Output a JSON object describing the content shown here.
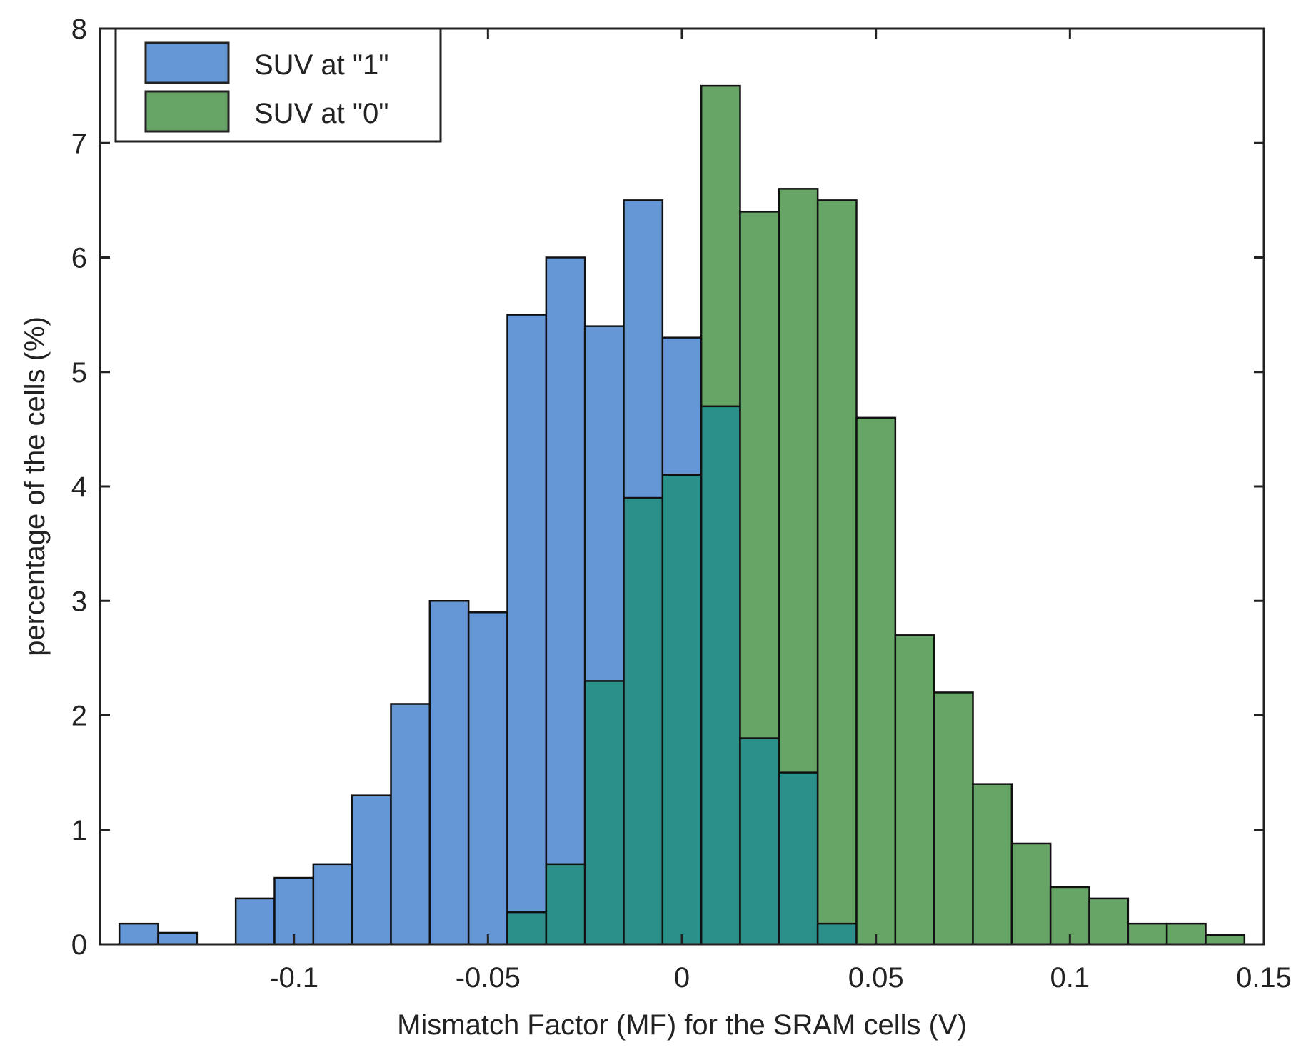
{
  "chart_data": {
    "type": "bar",
    "title": "",
    "xlabel": "Mismatch Factor (MF) for the SRAM cells (V)",
    "ylabel": "percentage of the cells (%)",
    "xlim": [
      -0.15,
      0.15
    ],
    "ylim": [
      0,
      8
    ],
    "xticks": [
      -0.1,
      -0.05,
      0,
      0.05,
      0.1,
      0.15
    ],
    "xtick_labels": [
      "-0.1",
      "-0.05",
      "0",
      "0.05",
      "0.1",
      "0.15"
    ],
    "yticks": [
      0,
      1,
      2,
      3,
      4,
      5,
      6,
      7,
      8
    ],
    "ytick_labels": [
      "0",
      "1",
      "2",
      "3",
      "4",
      "5",
      "6",
      "7",
      "8"
    ],
    "bin_width": 0.01,
    "bin_centers": [
      -0.14,
      -0.13,
      -0.12,
      -0.11,
      -0.1,
      -0.09,
      -0.08,
      -0.07,
      -0.06,
      -0.05,
      -0.04,
      -0.03,
      -0.02,
      -0.01,
      0.0,
      0.01,
      0.02,
      0.03,
      0.04,
      0.05,
      0.06,
      0.07,
      0.08,
      0.09,
      0.1,
      0.11,
      0.12,
      0.13,
      0.14
    ],
    "overlap_color": "#2a9089",
    "legend_position": "top-left",
    "grid": false,
    "series": [
      {
        "name": "SUV at \"1\"",
        "color": "#6596d6",
        "values": [
          0.18,
          0.1,
          0,
          0.4,
          0.58,
          0.7,
          1.3,
          2.1,
          3.0,
          2.9,
          5.5,
          6.0,
          5.4,
          6.5,
          5.3,
          4.7,
          1.8,
          1.5,
          0.18,
          0,
          0,
          0,
          0,
          0,
          0,
          0,
          0,
          0,
          0
        ]
      },
      {
        "name": "SUV at \"0\"",
        "color": "#66a566",
        "values": [
          0,
          0,
          0,
          0,
          0,
          0,
          0,
          0,
          0,
          0,
          0.28,
          0.7,
          2.3,
          3.9,
          4.1,
          7.5,
          6.4,
          6.6,
          6.5,
          4.6,
          2.7,
          2.2,
          1.4,
          0.88,
          0.5,
          0.4,
          0.18,
          0.18,
          0.08
        ]
      }
    ]
  }
}
